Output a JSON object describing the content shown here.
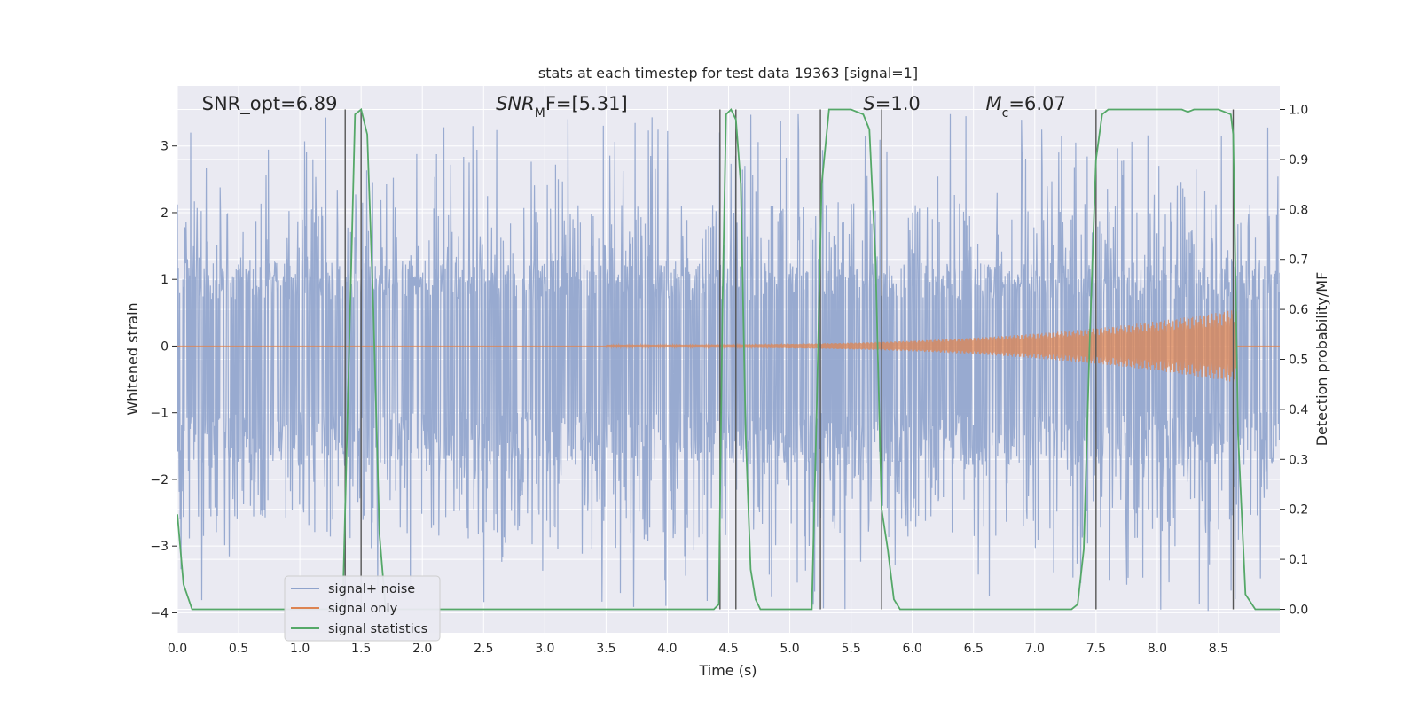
{
  "chart_data": {
    "type": "line",
    "title": "stats at each timestep for test data 19363 [signal=1]",
    "xlabel": "Time (s)",
    "ylabel": "Whitened strain",
    "y2label": "Detection probability/MF",
    "xlim": [
      0.0,
      9.0
    ],
    "ylim": [
      -4.3,
      3.9
    ],
    "y2lim": [
      -0.047,
      1.047
    ],
    "xticks": [
      "0.0",
      "0.5",
      "1.0",
      "1.5",
      "2.0",
      "2.5",
      "3.0",
      "3.5",
      "4.0",
      "4.5",
      "5.0",
      "5.5",
      "6.0",
      "6.5",
      "7.0",
      "7.5",
      "8.0",
      "8.5"
    ],
    "yticks": [
      "3",
      "2",
      "1",
      "0",
      "−1",
      "−2",
      "−3",
      "−4"
    ],
    "y2ticks": [
      "1.0",
      "0.9",
      "0.8",
      "0.7",
      "0.6",
      "0.5",
      "0.4",
      "0.3",
      "0.2",
      "0.1",
      "0.0"
    ],
    "grid": true,
    "legend_position": "lower-left",
    "annotations": [
      {
        "text": "SNR_opt=6.89",
        "x": 0.2
      },
      {
        "html": "SNR<tspan baseline-shift='sub' font-size='14'>M</tspan>F=[5.31]",
        "x": 2.6
      },
      {
        "html": "S=1.0",
        "x": 5.6
      },
      {
        "html": "M<tspan baseline-shift='sub' font-size='14'>c</tspan>=6.07",
        "x": 6.6
      }
    ],
    "series": [
      {
        "name": "signal+ noise",
        "color": "#8fa3cc",
        "noise_envelope": [
          -1.8,
          1.25
        ],
        "peak_range": [
          -4.0,
          3.5
        ]
      },
      {
        "name": "signal only",
        "color": "#dd8452",
        "chirp": {
          "x_start": 3.5,
          "x_end": 8.65,
          "amplitude_end": 0.55
        }
      },
      {
        "name": "signal statistics",
        "color": "#55a868",
        "axis": "right",
        "x": [
          0.0,
          0.05,
          0.12,
          0.5,
          1.0,
          1.2,
          1.3,
          1.35,
          1.4,
          1.45,
          1.5,
          1.55,
          1.6,
          1.65,
          1.7,
          2.0,
          3.0,
          4.0,
          4.38,
          4.42,
          4.45,
          4.48,
          4.52,
          4.56,
          4.6,
          4.64,
          4.68,
          4.72,
          4.76,
          4.8,
          5.0,
          5.18,
          5.22,
          5.26,
          5.32,
          5.4,
          5.5,
          5.6,
          5.65,
          5.7,
          5.75,
          5.8,
          5.85,
          5.9,
          6.0,
          6.5,
          7.0,
          7.3,
          7.35,
          7.4,
          7.45,
          7.5,
          7.55,
          7.6,
          7.8,
          8.0,
          8.2,
          8.25,
          8.3,
          8.5,
          8.6,
          8.62,
          8.66,
          8.72,
          8.8,
          9.0
        ],
        "y": [
          0.19,
          0.05,
          0.0,
          0.0,
          0.0,
          0.0,
          0.0,
          0.01,
          0.5,
          0.99,
          1.0,
          0.95,
          0.6,
          0.15,
          0.0,
          0.0,
          0.0,
          0.0,
          0.0,
          0.01,
          0.6,
          0.99,
          1.0,
          0.98,
          0.85,
          0.35,
          0.08,
          0.02,
          0.0,
          0.0,
          0.0,
          0.0,
          0.4,
          0.85,
          1.0,
          1.0,
          1.0,
          0.99,
          0.96,
          0.7,
          0.2,
          0.12,
          0.02,
          0.0,
          0.0,
          0.0,
          0.0,
          0.0,
          0.01,
          0.12,
          0.55,
          0.9,
          0.99,
          1.0,
          1.0,
          1.0,
          1.0,
          0.995,
          1.0,
          1.0,
          0.99,
          0.95,
          0.35,
          0.03,
          0.0,
          0.0
        ]
      }
    ],
    "vertical_lines": [
      1.37,
      1.5,
      4.43,
      4.56,
      5.25,
      5.75,
      7.5,
      8.62
    ]
  }
}
